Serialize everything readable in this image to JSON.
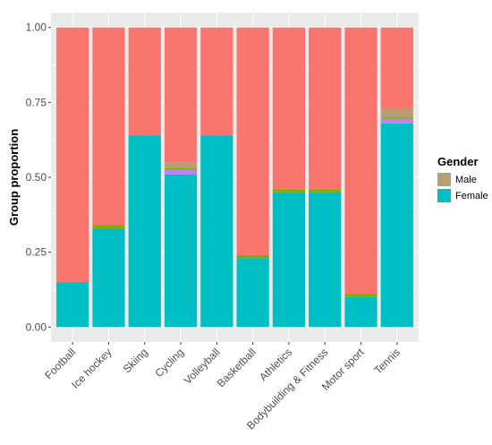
{
  "chart_data": {
    "type": "bar",
    "stacked": true,
    "ylabel": "Group proportion",
    "xlabel": "",
    "ylim": [
      0,
      1
    ],
    "yticks": [
      0,
      0.25,
      0.5,
      0.75,
      1
    ],
    "ytick_labels": [
      "0.00",
      "0.25",
      "0.50",
      "0.75",
      "1.00"
    ],
    "grid": true,
    "categories": [
      "Football",
      "Ice hockey",
      "Skiing",
      "Cycling",
      "Volleyball",
      "Basketball",
      "Athletics",
      "Bodybuilding & Fitness",
      "Motor sport",
      "Tennis"
    ],
    "series": [
      {
        "name": "Female",
        "color": "#00BFC4",
        "values": [
          0.15,
          0.33,
          0.64,
          0.51,
          0.64,
          0.23,
          0.45,
          0.45,
          0.1,
          0.68
        ]
      },
      {
        "name": "",
        "color": "#C77CFF",
        "values": [
          0.0,
          0.0,
          0.0,
          0.015,
          0.0,
          0.0,
          0.0,
          0.0,
          0.0,
          0.015
        ]
      },
      {
        "name": "",
        "color": "#7CAE00",
        "values": [
          0.0,
          0.01,
          0.0,
          0.005,
          0.0,
          0.01,
          0.01,
          0.01,
          0.01,
          0.005
        ]
      },
      {
        "name": "Male",
        "color": "#B79F75",
        "values": [
          0.0,
          0.0,
          0.0,
          0.02,
          0.0,
          0.0,
          0.0,
          0.0,
          0.0,
          0.03
        ]
      },
      {
        "name": "",
        "color": "#F8766D",
        "values": [
          0.85,
          0.66,
          0.36,
          0.45,
          0.36,
          0.76,
          0.54,
          0.54,
          0.89,
          0.27
        ]
      }
    ],
    "legend": {
      "title": "Gender",
      "placement": "right",
      "entries": [
        {
          "label": "Male",
          "color": "#B79F75"
        },
        {
          "label": "Female",
          "color": "#00BFC4"
        }
      ]
    },
    "panel_color": "#EBEBEB"
  }
}
